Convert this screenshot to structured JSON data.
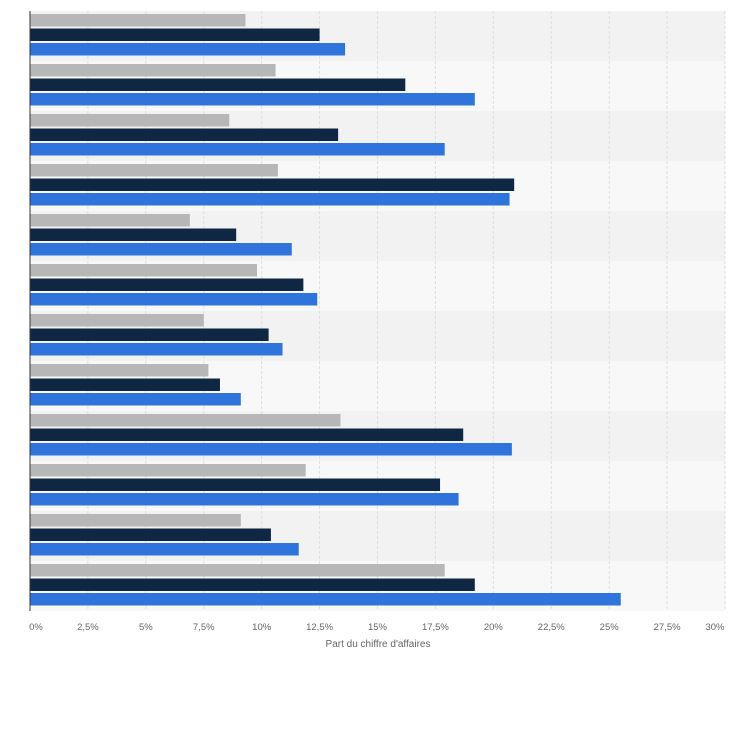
{
  "chart_data": {
    "type": "bar",
    "orientation": "horizontal",
    "categories": [
      "",
      "",
      "",
      "",
      "",
      "",
      "",
      "",
      "",
      "",
      "",
      ""
    ],
    "series": [
      {
        "color": "#b7b7b7",
        "values": [
          9.3,
          10.6,
          8.6,
          10.7,
          6.9,
          9.8,
          7.5,
          7.7,
          13.4,
          11.9,
          9.1,
          17.9
        ]
      },
      {
        "color": "#0f2743",
        "values": [
          12.5,
          16.2,
          13.3,
          20.9,
          8.9,
          11.8,
          10.3,
          8.2,
          18.7,
          17.7,
          10.4,
          19.2
        ]
      },
      {
        "color": "#2f74dc",
        "values": [
          13.6,
          19.2,
          17.9,
          20.7,
          11.3,
          12.4,
          10.9,
          9.1,
          20.8,
          18.5,
          11.6,
          25.5
        ]
      }
    ],
    "xlim": [
      0,
      30
    ],
    "tick_labels": [
      "0%",
      "2,5%",
      "5%",
      "7,5%",
      "10%",
      "12,5%",
      "15%",
      "17,5%",
      "20%",
      "22,5%",
      "25%",
      "27,5%",
      "30%"
    ],
    "xlabel": "Part du chiffre d'affaires",
    "ylabel": "",
    "title": "",
    "grid": true,
    "row_band_colors": [
      "#f2f2f2",
      "#f8f8f8"
    ],
    "grid_color": "#dedede"
  }
}
